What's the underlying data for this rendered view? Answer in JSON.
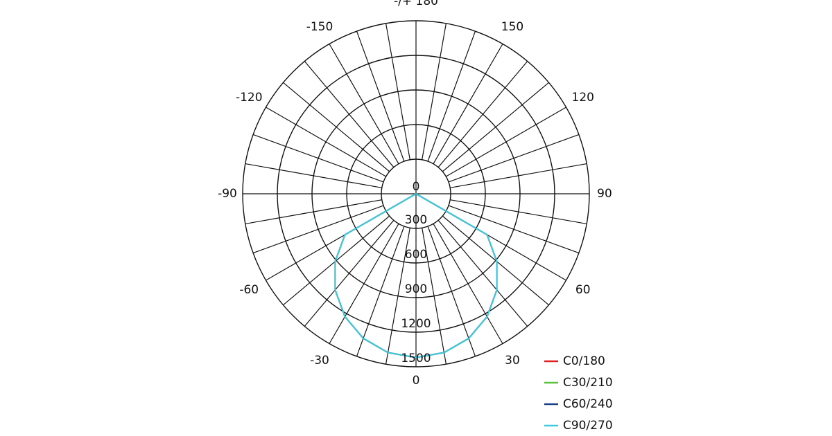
{
  "chart_data": {
    "type": "polar",
    "angles": [
      -90,
      -80,
      -70,
      -60,
      -50,
      -40,
      -30,
      -20,
      -10,
      0,
      10,
      20,
      30,
      40,
      50,
      60,
      70,
      80,
      90
    ],
    "series": [
      {
        "name": "C0/180",
        "color": "#e02020",
        "values": [
          0,
          0,
          0,
          710,
          913,
          1088,
          1230,
          1334,
          1398,
          1420,
          1398,
          1334,
          1230,
          1088,
          913,
          710,
          0,
          0,
          0
        ]
      },
      {
        "name": "C30/210",
        "color": "#5cc23a",
        "values": [
          0,
          0,
          0,
          710,
          913,
          1088,
          1230,
          1334,
          1398,
          1420,
          1398,
          1334,
          1230,
          1088,
          913,
          710,
          0,
          0,
          0
        ]
      },
      {
        "name": "C60/240",
        "color": "#1c3f8c",
        "values": [
          0,
          0,
          0,
          710,
          913,
          1088,
          1230,
          1334,
          1398,
          1420,
          1398,
          1334,
          1230,
          1088,
          913,
          710,
          0,
          0,
          0
        ]
      },
      {
        "name": "C90/270",
        "color": "#3ccbe0",
        "values": [
          0,
          0,
          0,
          710,
          913,
          1088,
          1230,
          1334,
          1398,
          1420,
          1398,
          1334,
          1230,
          1088,
          913,
          710,
          0,
          0,
          0
        ]
      }
    ],
    "rlim": [
      0,
      1500
    ],
    "rticks": [
      0,
      300,
      600,
      900,
      1200,
      1500
    ],
    "angle_ticks": [
      0,
      30,
      60,
      90,
      120,
      150,
      {
        "value": 180,
        "label": "-/+ 180"
      },
      -150,
      -120,
      -90,
      -60,
      -30
    ],
    "legend": "bottom-right"
  }
}
